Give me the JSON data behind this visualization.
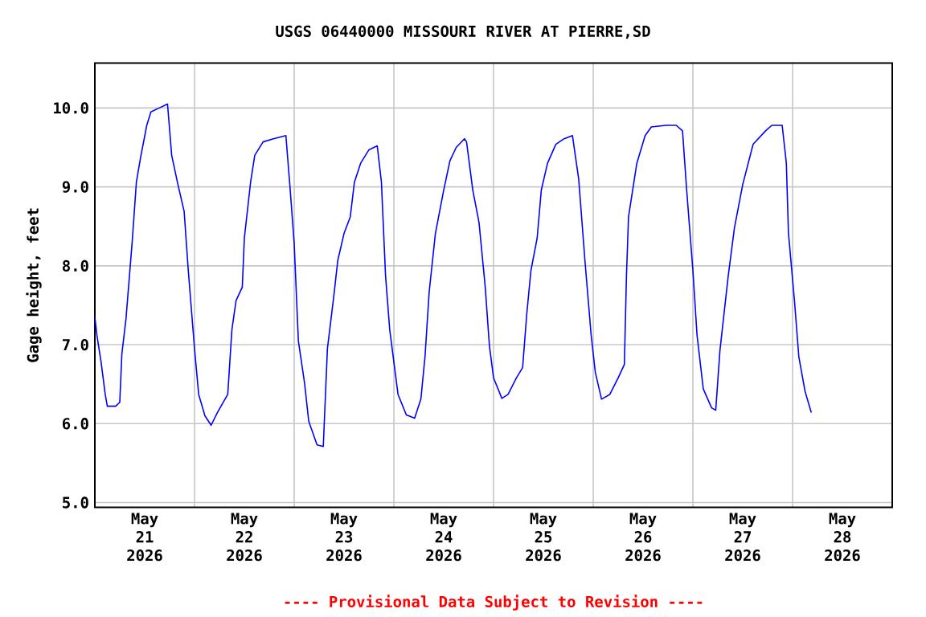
{
  "chart_data": {
    "type": "line",
    "title": "USGS 06440000 MISSOURI RIVER AT PIERRE,SD",
    "ylabel": "Gage height, feet",
    "annotations": [
      "---- Provisional Data Subject to Revision ----"
    ],
    "xlim": [
      "2026-05-21T00:00",
      "2026-05-29T00:00"
    ],
    "xticks": [
      {
        "value": "2026-05-21T12:00",
        "label": "May 21 2026"
      },
      {
        "value": "2026-05-22T12:00",
        "label": "May 22 2026"
      },
      {
        "value": "2026-05-23T12:00",
        "label": "May 23 2026"
      },
      {
        "value": "2026-05-24T12:00",
        "label": "May 24 2026"
      },
      {
        "value": "2026-05-25T12:00",
        "label": "May 25 2026"
      },
      {
        "value": "2026-05-26T12:00",
        "label": "May 26 2026"
      },
      {
        "value": "2026-05-27T12:00",
        "label": "May 27 2026"
      },
      {
        "value": "2026-05-28T12:00",
        "label": "May 28 2026"
      },
      {
        "value": "2026-05-22T00:00",
        "label": null
      },
      {
        "value": "2026-05-23T00:00",
        "label": null
      },
      {
        "value": "2026-05-24T00:00",
        "label": null
      },
      {
        "value": "2026-05-25T00:00",
        "label": null
      },
      {
        "value": "2026-05-26T00:00",
        "label": null
      },
      {
        "value": "2026-05-27T00:00",
        "label": null
      },
      {
        "value": "2026-05-28T00:00",
        "label": null
      }
    ],
    "ylim": [
      4.94,
      10.57
    ],
    "yticks": [
      {
        "value": 5,
        "label": "5.0"
      },
      {
        "value": 6,
        "label": "6.0"
      },
      {
        "value": 7,
        "label": "7.0"
      },
      {
        "value": 8,
        "label": "8.0"
      },
      {
        "value": 9,
        "label": "9.0"
      },
      {
        "value": 10,
        "label": "10.0"
      }
    ],
    "grid": true,
    "series": [
      {
        "color": "#0000ff",
        "x": [
          "2026-05-21T00:00",
          "2026-05-21T00:30",
          "2026-05-21T01:30",
          "2026-05-21T02:30",
          "2026-05-21T03:00",
          "2026-05-21T05:00",
          "2026-05-21T06:00",
          "2026-05-21T06:30",
          "2026-05-21T07:30",
          "2026-05-21T09:00",
          "2026-05-21T10:00",
          "2026-05-21T11:00",
          "2026-05-21T12:30",
          "2026-05-21T13:30",
          "2026-05-21T15:30",
          "2026-05-21T17:30",
          "2026-05-21T18:30",
          "2026-05-21T20:00",
          "2026-05-21T21:30",
          "2026-05-21T22:30",
          "2026-05-22T00:00",
          "2026-05-22T01:00",
          "2026-05-22T02:30",
          "2026-05-22T04:00",
          "2026-05-22T05:30",
          "2026-05-22T08:00",
          "2026-05-22T09:00",
          "2026-05-22T10:00",
          "2026-05-22T11:30",
          "2026-05-22T12:00",
          "2026-05-22T13:30",
          "2026-05-22T14:30",
          "2026-05-22T16:30",
          "2026-05-22T19:00",
          "2026-05-22T22:00",
          "2026-05-22T23:00",
          "2026-05-23T00:00",
          "2026-05-23T01:00",
          "2026-05-23T02:30",
          "2026-05-23T03:30",
          "2026-05-23T05:30",
          "2026-05-23T07:00",
          "2026-05-23T08:00",
          "2026-05-23T09:30",
          "2026-05-23T10:30",
          "2026-05-23T12:00",
          "2026-05-23T13:30",
          "2026-05-23T14:30",
          "2026-05-23T16:00",
          "2026-05-23T18:00",
          "2026-05-23T20:00",
          "2026-05-23T21:00",
          "2026-05-23T22:00",
          "2026-05-23T23:00",
          "2026-05-24T01:00",
          "2026-05-24T03:00",
          "2026-05-24T05:00",
          "2026-05-24T06:30",
          "2026-05-24T07:30",
          "2026-05-24T08:30",
          "2026-05-24T10:00",
          "2026-05-24T12:00",
          "2026-05-24T13:30",
          "2026-05-24T15:00",
          "2026-05-24T17:00",
          "2026-05-24T17:30",
          "2026-05-24T19:00",
          "2026-05-24T20:30",
          "2026-05-24T22:00",
          "2026-05-24T23:00",
          "2026-05-25T00:00",
          "2026-05-25T02:00",
          "2026-05-25T03:30",
          "2026-05-25T05:30",
          "2026-05-25T07:00",
          "2026-05-25T08:00",
          "2026-05-25T09:00",
          "2026-05-25T10:30",
          "2026-05-25T11:30",
          "2026-05-25T13:00",
          "2026-05-25T15:00",
          "2026-05-25T17:00",
          "2026-05-25T19:00",
          "2026-05-25T20:30",
          "2026-05-25T22:00",
          "2026-05-25T23:30",
          "2026-05-26T00:30",
          "2026-05-26T02:00",
          "2026-05-26T04:00",
          "2026-05-26T06:00",
          "2026-05-26T07:30",
          "2026-05-26T08:00",
          "2026-05-26T08:30",
          "2026-05-26T10:30",
          "2026-05-26T12:30",
          "2026-05-26T14:00",
          "2026-05-26T17:30",
          "2026-05-26T20:00",
          "2026-05-26T21:30",
          "2026-05-26T22:30",
          "2026-05-27T00:00",
          "2026-05-27T01:00",
          "2026-05-27T02:30",
          "2026-05-27T04:30",
          "2026-05-27T05:30",
          "2026-05-27T06:30",
          "2026-05-27T08:30",
          "2026-05-27T10:00",
          "2026-05-27T12:00",
          "2026-05-27T14:30",
          "2026-05-27T17:30",
          "2026-05-27T19:00",
          "2026-05-27T21:30",
          "2026-05-27T22:30",
          "2026-05-27T23:00",
          "2026-05-28T00:30",
          "2026-05-28T01:30",
          "2026-05-28T03:00",
          "2026-05-28T04:30"
        ],
        "values": [
          7.35,
          7.12,
          6.78,
          6.37,
          6.22,
          6.22,
          6.27,
          6.88,
          7.33,
          8.31,
          9.06,
          9.37,
          9.78,
          9.95,
          10.0,
          10.05,
          9.4,
          9.03,
          8.69,
          7.94,
          6.95,
          6.37,
          6.1,
          5.98,
          6.14,
          6.37,
          7.19,
          7.56,
          7.73,
          8.35,
          9.06,
          9.4,
          9.57,
          9.61,
          9.65,
          8.99,
          8.28,
          7.05,
          6.51,
          6.03,
          5.73,
          5.71,
          6.95,
          7.6,
          8.07,
          8.41,
          8.62,
          9.06,
          9.3,
          9.47,
          9.52,
          9.06,
          7.87,
          7.19,
          6.37,
          6.11,
          6.07,
          6.31,
          6.85,
          7.67,
          8.41,
          8.96,
          9.33,
          9.5,
          9.61,
          9.57,
          8.96,
          8.55,
          7.73,
          6.99,
          6.58,
          6.32,
          6.37,
          6.58,
          6.71,
          7.39,
          7.94,
          8.35,
          8.96,
          9.3,
          9.54,
          9.61,
          9.65,
          9.1,
          8.07,
          7.12,
          6.65,
          6.31,
          6.37,
          6.58,
          6.75,
          7.87,
          8.62,
          9.3,
          9.65,
          9.76,
          9.78,
          9.78,
          9.71,
          8.96,
          7.94,
          7.12,
          6.44,
          6.2,
          6.17,
          6.92,
          7.87,
          8.48,
          9.03,
          9.54,
          9.71,
          9.78,
          9.78,
          9.3,
          8.42,
          7.53,
          6.85,
          6.41,
          6.14
        ]
      }
    ]
  }
}
